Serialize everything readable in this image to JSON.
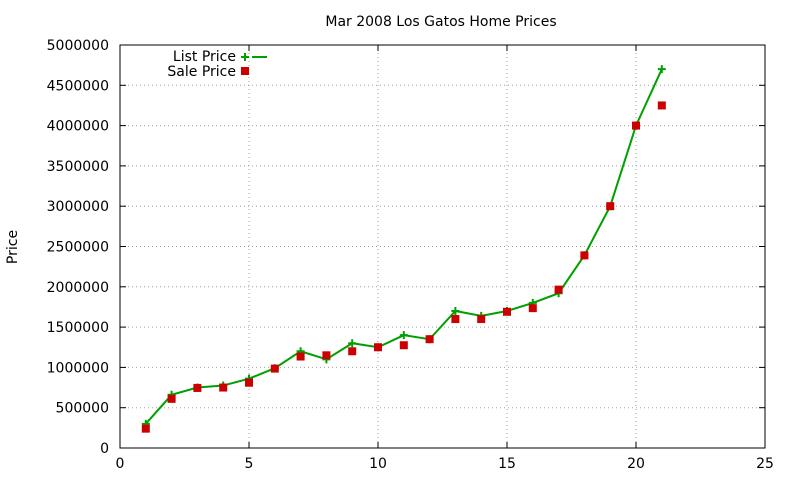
{
  "chart_data": {
    "type": "line",
    "title": "Mar 2008 Los Gatos Home Prices",
    "xlabel": "",
    "ylabel": "Price",
    "xlim": [
      0,
      25
    ],
    "ylim": [
      0,
      5000000
    ],
    "xticks": [
      0,
      5,
      10,
      15,
      20,
      25
    ],
    "yticks": [
      0,
      500000,
      1000000,
      1500000,
      2000000,
      2500000,
      3000000,
      3500000,
      4000000,
      4500000,
      5000000
    ],
    "grid": true,
    "legend_position": "top-left",
    "series": [
      {
        "name": "List Price",
        "style": "line+cross",
        "color": "#00a000",
        "x": [
          1,
          2,
          3,
          4,
          5,
          6,
          7,
          8,
          9,
          10,
          11,
          12,
          13,
          14,
          15,
          16,
          17,
          18,
          19,
          20,
          21
        ],
        "y": [
          300000,
          660000,
          750000,
          775000,
          860000,
          990000,
          1200000,
          1100000,
          1300000,
          1250000,
          1400000,
          1350000,
          1700000,
          1640000,
          1700000,
          1800000,
          1920000,
          2390000,
          3000000,
          4000000,
          4700000
        ]
      },
      {
        "name": "Sale Price",
        "style": "square",
        "color": "#cc0000",
        "x": [
          1,
          2,
          3,
          4,
          5,
          6,
          7,
          8,
          9,
          10,
          11,
          12,
          13,
          14,
          15,
          16,
          17,
          18,
          19,
          20,
          21
        ],
        "y": [
          240000,
          610000,
          745000,
          750000,
          810000,
          985000,
          1135000,
          1150000,
          1200000,
          1250000,
          1275000,
          1350000,
          1600000,
          1600000,
          1690000,
          1735000,
          1965000,
          2390000,
          3000000,
          4000000,
          4250000
        ]
      }
    ]
  }
}
